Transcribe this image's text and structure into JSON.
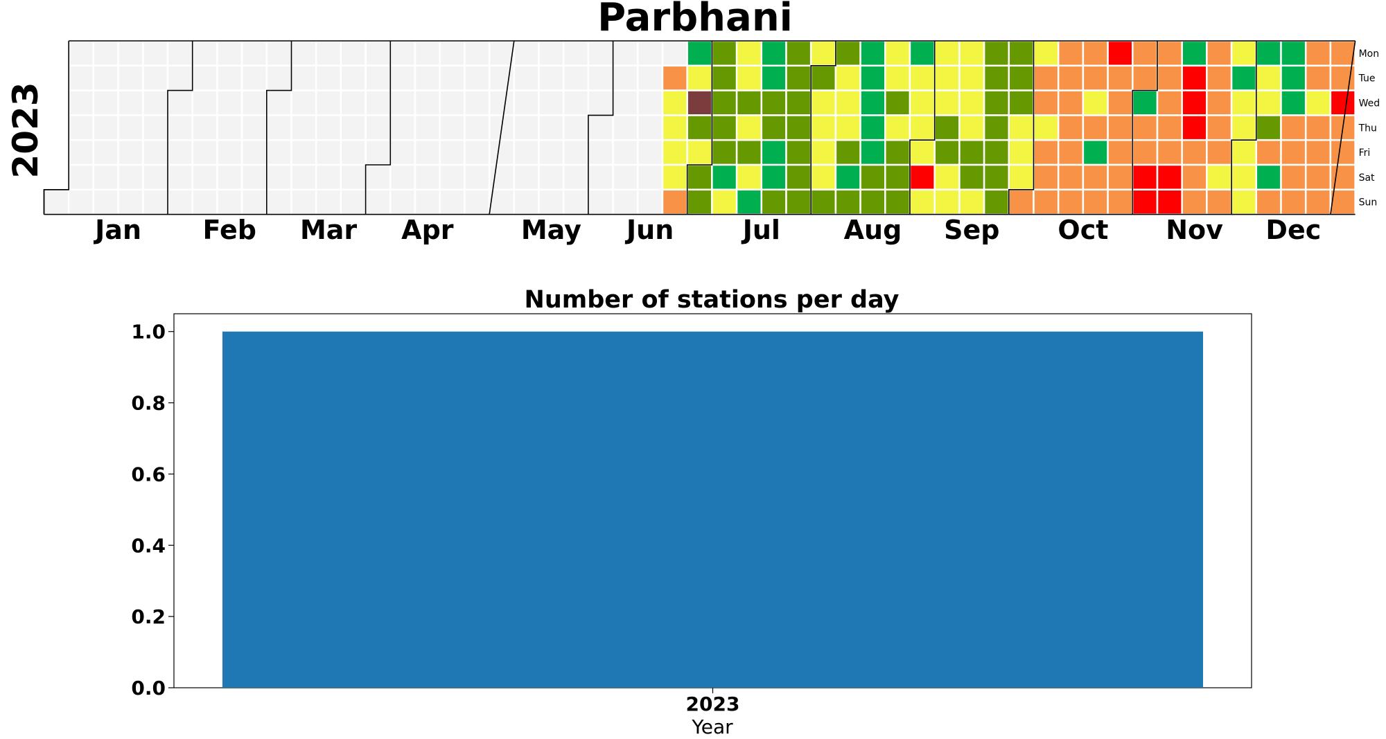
{
  "colors": {
    "empty": "#f3f3f3",
    "levels": [
      "#00b050",
      "#669900",
      "#f2f542",
      "#f79246",
      "#ff0000",
      "#7a3c3c"
    ],
    "bar": "#1f77b4"
  },
  "chart_data": [
    {
      "type": "heatmap",
      "title": "Parbhani",
      "year_label": "2023",
      "months": [
        "Jan",
        "Feb",
        "Mar",
        "Apr",
        "May",
        "Jun",
        "Jul",
        "Aug",
        "Sep",
        "Oct",
        "Nov",
        "Dec"
      ],
      "weekdays": [
        "Mon",
        "Tue",
        "Wed",
        "Thu",
        "Fri",
        "Sat",
        "Sun"
      ],
      "first_weekday_index": 6,
      "days_in_months": [
        31,
        28,
        31,
        30,
        31,
        30,
        31,
        31,
        30,
        31,
        30,
        31
      ],
      "legend": "none",
      "values_by_week": [
        [
          null
        ],
        [
          null,
          null,
          null,
          null,
          null,
          null,
          null
        ],
        [
          null,
          null,
          null,
          null,
          null,
          null,
          null
        ],
        [
          null,
          null,
          null,
          null,
          null,
          null,
          null
        ],
        [
          null,
          null,
          null,
          null,
          null,
          null,
          null
        ],
        [
          null,
          null,
          null,
          null,
          null,
          null,
          null
        ],
        [
          null,
          null,
          null,
          null,
          null,
          null,
          null
        ],
        [
          null,
          null,
          null,
          null,
          null,
          null,
          null
        ],
        [
          null,
          null,
          null,
          null,
          null,
          null,
          null
        ],
        [
          null,
          null,
          null,
          null,
          null,
          null,
          null
        ],
        [
          null,
          null,
          null,
          null,
          null,
          null,
          null
        ],
        [
          null,
          null,
          null,
          null,
          null,
          null,
          null
        ],
        [
          null,
          null,
          null,
          null,
          null,
          null,
          null
        ],
        [
          null,
          null,
          null,
          null,
          null,
          null,
          null
        ],
        [
          null,
          null,
          null,
          null,
          null,
          null,
          null
        ],
        [
          null,
          null,
          null,
          null,
          null,
          null,
          null
        ],
        [
          null,
          null,
          null,
          null,
          null,
          null,
          null
        ],
        [
          null,
          null,
          null,
          null,
          null,
          null,
          null
        ],
        [
          null,
          null,
          null,
          null,
          null,
          null,
          null
        ],
        [
          null,
          null,
          null,
          null,
          null,
          null,
          null
        ],
        [
          null,
          null,
          null,
          null,
          null,
          null,
          null
        ],
        [
          null,
          null,
          null,
          null,
          null,
          null,
          null
        ],
        [
          null,
          null,
          null,
          null,
          null,
          null,
          null
        ],
        [
          null,
          null,
          null,
          null,
          null,
          null,
          null
        ],
        [
          null,
          null,
          null,
          null,
          null,
          null,
          null
        ],
        [
          null,
          3,
          2,
          2,
          2,
          2,
          3
        ],
        [
          0,
          2,
          5,
          1,
          2,
          1,
          1
        ],
        [
          1,
          1,
          1,
          1,
          1,
          0,
          2
        ],
        [
          2,
          2,
          1,
          2,
          1,
          2,
          0
        ],
        [
          0,
          0,
          1,
          1,
          0,
          0,
          1
        ],
        [
          1,
          1,
          1,
          1,
          1,
          1,
          1
        ],
        [
          2,
          1,
          2,
          2,
          2,
          2,
          1
        ],
        [
          1,
          2,
          2,
          2,
          1,
          0,
          1
        ],
        [
          0,
          0,
          0,
          0,
          0,
          1,
          1
        ],
        [
          2,
          2,
          1,
          2,
          1,
          1,
          1
        ],
        [
          0,
          2,
          2,
          2,
          2,
          4,
          2
        ],
        [
          2,
          2,
          2,
          1,
          1,
          2,
          2
        ],
        [
          2,
          2,
          2,
          2,
          1,
          1,
          2
        ],
        [
          1,
          1,
          1,
          1,
          1,
          1,
          1
        ],
        [
          1,
          1,
          1,
          2,
          2,
          2,
          3
        ],
        [
          2,
          3,
          3,
          2,
          3,
          3,
          3
        ],
        [
          3,
          3,
          3,
          3,
          3,
          3,
          3
        ],
        [
          3,
          3,
          2,
          3,
          0,
          3,
          3
        ],
        [
          4,
          3,
          3,
          3,
          3,
          3,
          3
        ],
        [
          3,
          3,
          0,
          3,
          3,
          4,
          4
        ],
        [
          3,
          3,
          3,
          3,
          3,
          4,
          4
        ],
        [
          0,
          4,
          4,
          4,
          3,
          3,
          3
        ],
        [
          3,
          3,
          3,
          3,
          3,
          2,
          3
        ],
        [
          2,
          0,
          2,
          2,
          2,
          2,
          2
        ],
        [
          0,
          2,
          2,
          1,
          3,
          0,
          3
        ],
        [
          0,
          0,
          0,
          3,
          3,
          3,
          3
        ],
        [
          3,
          3,
          2,
          3,
          3,
          3,
          3
        ],
        [
          3,
          3,
          4,
          3,
          3,
          3,
          3
        ]
      ]
    },
    {
      "type": "bar",
      "title": "Number of stations per day",
      "categories": [
        "2023"
      ],
      "values": [
        1.0
      ],
      "xlabel": "Year",
      "ylabel": "",
      "ylim": [
        0,
        1.05
      ],
      "yticks": [
        "0.0",
        "0.2",
        "0.4",
        "0.6",
        "0.8",
        "1.0"
      ],
      "grid": false
    }
  ]
}
